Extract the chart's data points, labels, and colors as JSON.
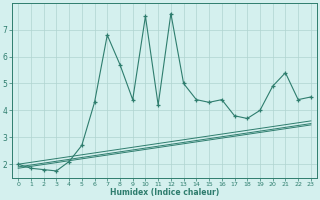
{
  "xlabel": "Humidex (Indice chaleur)",
  "bg_color": "#d4f0ee",
  "line_color": "#2e7d6e",
  "grid_color": "#b0d4d0",
  "x_data": [
    0,
    1,
    2,
    3,
    4,
    5,
    6,
    7,
    8,
    9,
    10,
    11,
    12,
    13,
    14,
    15,
    16,
    17,
    18,
    19,
    20,
    21,
    22,
    23
  ],
  "y_main": [
    2.0,
    1.85,
    1.8,
    1.75,
    2.1,
    2.7,
    4.3,
    6.8,
    5.7,
    4.4,
    7.5,
    4.2,
    7.6,
    5.0,
    4.4,
    4.3,
    4.4,
    3.8,
    3.7,
    4.0,
    4.9,
    5.4,
    4.4,
    4.5
  ],
  "y_reg1": [
    1.85,
    1.92,
    1.99,
    2.06,
    2.13,
    2.2,
    2.27,
    2.34,
    2.41,
    2.48,
    2.55,
    2.62,
    2.69,
    2.76,
    2.83,
    2.9,
    2.97,
    3.04,
    3.11,
    3.18,
    3.25,
    3.32,
    3.39,
    3.46
  ],
  "y_reg2": [
    1.9,
    1.97,
    2.04,
    2.11,
    2.18,
    2.25,
    2.32,
    2.39,
    2.46,
    2.53,
    2.6,
    2.67,
    2.74,
    2.81,
    2.88,
    2.95,
    3.02,
    3.09,
    3.16,
    3.23,
    3.3,
    3.37,
    3.44,
    3.51
  ],
  "y_reg3": [
    2.0,
    2.07,
    2.14,
    2.21,
    2.28,
    2.35,
    2.42,
    2.49,
    2.56,
    2.63,
    2.7,
    2.77,
    2.84,
    2.91,
    2.98,
    3.05,
    3.12,
    3.19,
    3.26,
    3.33,
    3.4,
    3.47,
    3.54,
    3.61
  ],
  "ylim": [
    1.5,
    8.0
  ],
  "xlim": [
    -0.5,
    23.5
  ],
  "yticks": [
    2,
    3,
    4,
    5,
    6,
    7
  ],
  "xticks": [
    0,
    1,
    2,
    3,
    4,
    5,
    6,
    7,
    8,
    9,
    10,
    11,
    12,
    13,
    14,
    15,
    16,
    17,
    18,
    19,
    20,
    21,
    22,
    23
  ]
}
